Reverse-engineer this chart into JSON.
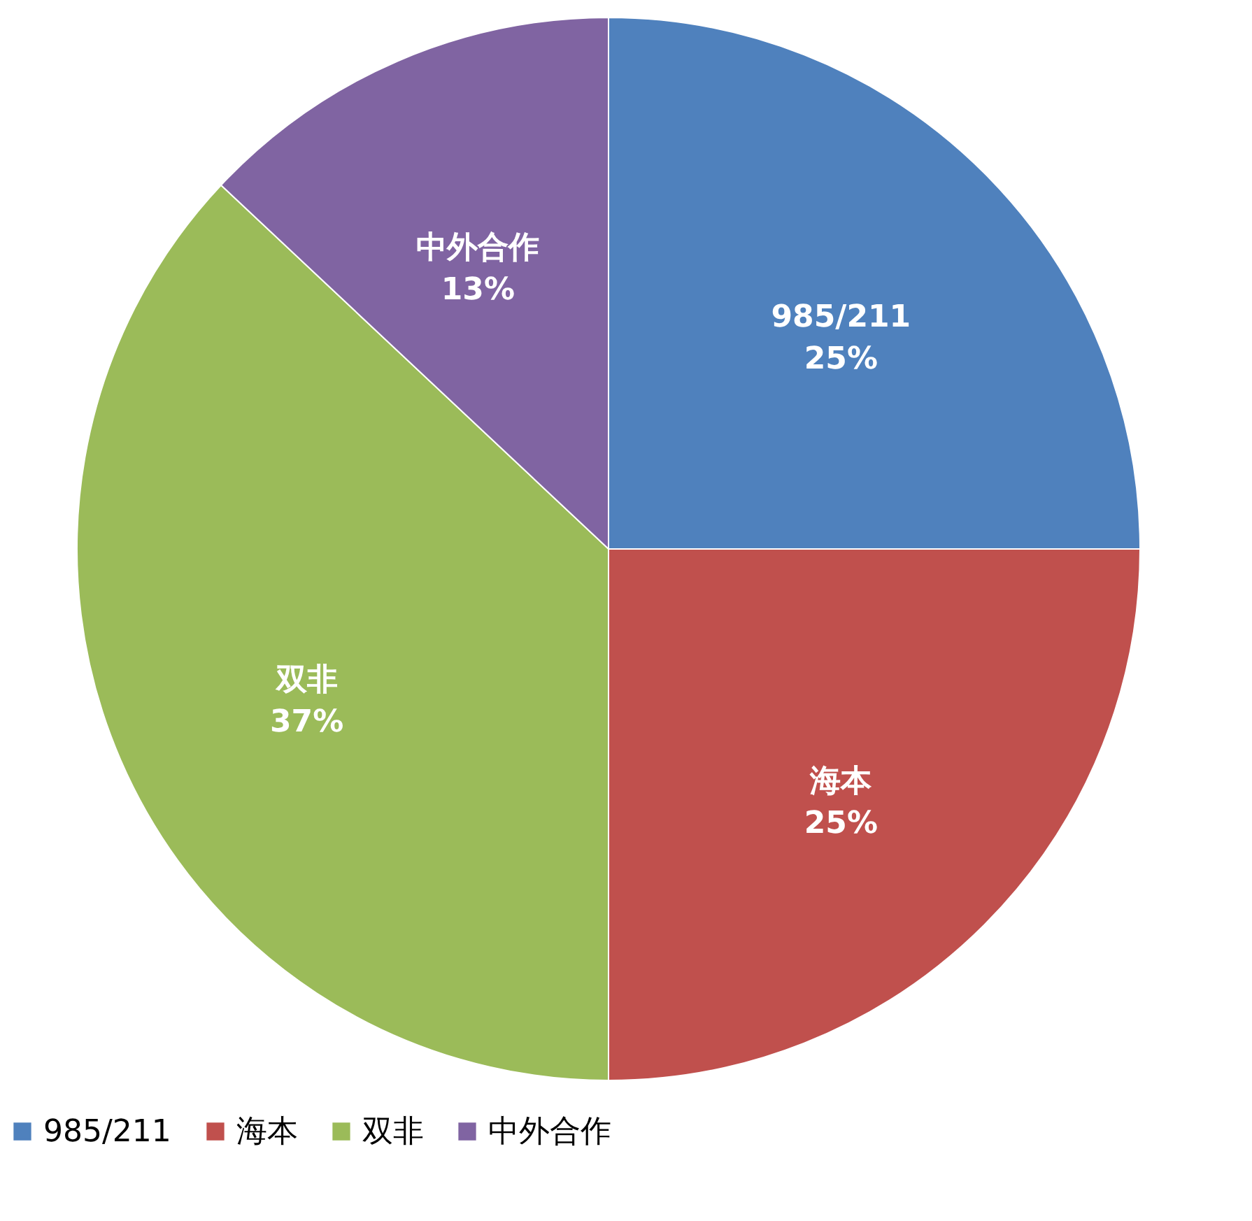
{
  "chart_data": {
    "type": "pie",
    "categories": [
      "985/211",
      "海本",
      "双非",
      "中外合作"
    ],
    "values": [
      25,
      25,
      37,
      13
    ],
    "colors": [
      "#4f81bd",
      "#c0504d",
      "#9bbb59",
      "#8064a2"
    ],
    "value_labels": [
      "25%",
      "25%",
      "37%",
      "13%"
    ],
    "legend": "bottom"
  }
}
